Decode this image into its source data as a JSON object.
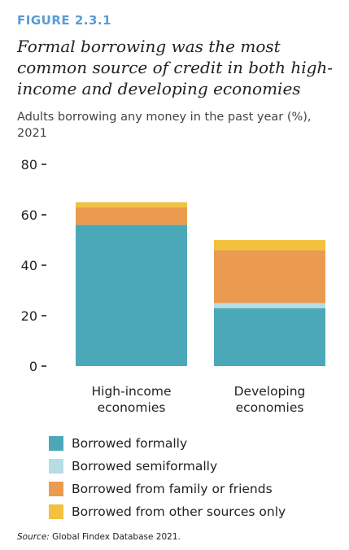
{
  "figure_label": "FIGURE 2.3.1",
  "title": "Formal borrowing was the most common source of credit in both high-income and developing economies",
  "subtitle": "Adults borrowing any money in the past year (%), 2021",
  "source_prefix": "Source:",
  "source_text": " Global Findex Database 2021.",
  "colors": {
    "formal": "#4ba8b8",
    "semiformal": "#b7dde4",
    "family": "#eb9b4f",
    "other": "#f3c140"
  },
  "chart_data": {
    "type": "bar",
    "stacked": true,
    "categories": [
      "High-income\neconomies",
      "Developing\neconomies"
    ],
    "ylim": [
      0,
      80
    ],
    "yticks": [
      0,
      20,
      40,
      60,
      80
    ],
    "grid": false,
    "legend_position": "bottom",
    "series": [
      {
        "name": "Borrowed formally",
        "key": "formal",
        "values": [
          56,
          23
        ]
      },
      {
        "name": "Borrowed semiformally",
        "key": "semiformal",
        "values": [
          0,
          2
        ]
      },
      {
        "name": "Borrowed from family or friends",
        "key": "family",
        "values": [
          7,
          21
        ]
      },
      {
        "name": "Borrowed from other sources only",
        "key": "other",
        "values": [
          2,
          4
        ]
      }
    ]
  }
}
